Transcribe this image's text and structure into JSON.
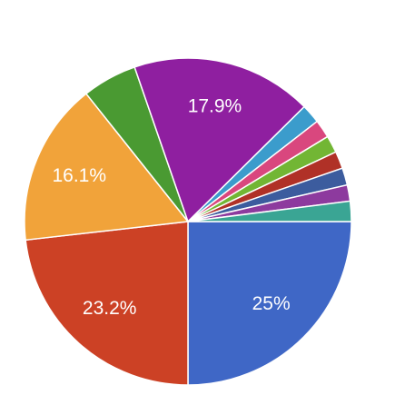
{
  "chart_data": {
    "type": "pie",
    "values": [
      25,
      23.2,
      16.1,
      5.4,
      17.9,
      1.9,
      1.8,
      1.7,
      1.7,
      1.7,
      1.6,
      2.0
    ],
    "value_labels": [
      "25%",
      "23.2%",
      "16.1%",
      null,
      "17.9%",
      null,
      null,
      null,
      null,
      null,
      null,
      null
    ],
    "colors": [
      "#3f67c6",
      "#cc4125",
      "#f1a33a",
      "#4a9a32",
      "#8f1fa0",
      "#3b9ccc",
      "#d9477e",
      "#72b634",
      "#b03127",
      "#3c5c9e",
      "#8d3a9e",
      "#3aa594"
    ],
    "start_angle": 90
  }
}
